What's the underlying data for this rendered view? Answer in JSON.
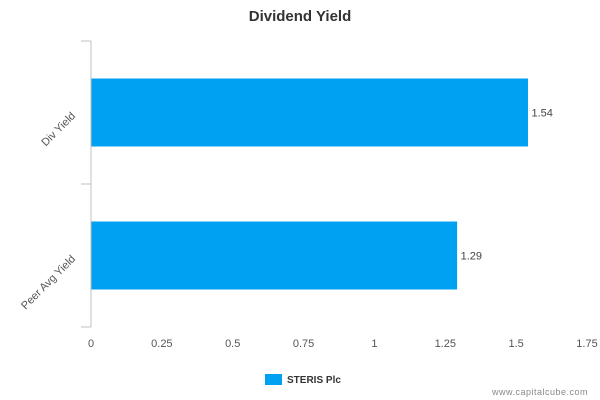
{
  "chart_data": {
    "type": "bar",
    "orientation": "horizontal",
    "title": "Dividend Yield",
    "categories": [
      "Div Yield",
      "Peer Avg Yield"
    ],
    "series": [
      {
        "name": "STERIS Plc",
        "values": [
          1.54,
          1.29
        ],
        "labels": [
          "1.54",
          "1.29"
        ],
        "color": "#00a1f1"
      }
    ],
    "xlim": [
      0,
      1.75
    ],
    "xticks": [
      0,
      0.25,
      0.5,
      0.75,
      1,
      1.25,
      1.5,
      1.75
    ],
    "xtick_labels": [
      "0",
      "0.25",
      "0.5",
      "0.75",
      "1",
      "1.25",
      "1.5",
      "1.75"
    ],
    "grid": false,
    "legend_position": "bottom-center"
  },
  "watermark": "www.capitalcube.com",
  "colors": {
    "bar": "#00a1f1",
    "axis": "#c0c0c0"
  }
}
